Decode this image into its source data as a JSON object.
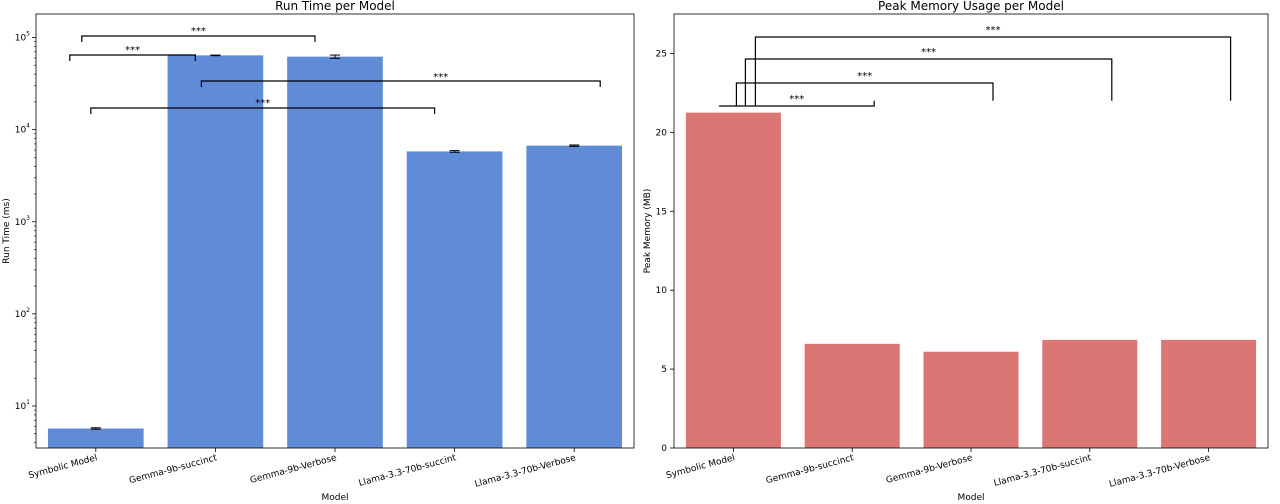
{
  "chart_data": [
    {
      "type": "bar",
      "title": "Run Time per Model",
      "xlabel": "Model",
      "ylabel": "Run Time (ms)",
      "yscale": "log",
      "ylim": [
        3.5,
        180000
      ],
      "y_ticks": [
        {
          "value": 10,
          "base": "10",
          "exp": "1"
        },
        {
          "value": 100,
          "base": "10",
          "exp": "2"
        },
        {
          "value": 1000,
          "base": "10",
          "exp": "3"
        },
        {
          "value": 10000,
          "base": "10",
          "exp": "4"
        },
        {
          "value": 100000,
          "base": "10",
          "exp": "5"
        }
      ],
      "categories": [
        "Symbolic Model",
        "Gemma-9b-succinct",
        "Gemma-9b-Verbose",
        "Llama-3.3-70b-succint",
        "Llama-3.3-70b-Verbose"
      ],
      "values": [
        5.7,
        64000,
        62000,
        5800,
        6700
      ],
      "errors": [
        0.1,
        500,
        2500,
        120,
        110
      ],
      "color": "#608bd6",
      "significance": [
        {
          "from": 0,
          "to": 2,
          "label": "***"
        },
        {
          "from": 0,
          "to": 1,
          "label": "***"
        },
        {
          "from": 1,
          "to": 4,
          "label": "***"
        },
        {
          "from": 0,
          "to": 3,
          "label": "***"
        }
      ],
      "grid": false
    },
    {
      "type": "bar",
      "title": "Peak Memory Usage per Model",
      "xlabel": "Model",
      "ylabel": "Peak Memory (MB)",
      "ylim": [
        0,
        27.5
      ],
      "y_ticks": [
        0,
        5,
        10,
        15,
        20,
        25
      ],
      "categories": [
        "Symbolic Model",
        "Gemma-9b-succinct",
        "Gemma-9b-Verbose",
        "Llama-3.3-70b-succint",
        "Llama-3.3-70b-Verbose"
      ],
      "values": [
        21.25,
        6.6,
        6.1,
        6.85,
        6.85
      ],
      "color": "#dc7674",
      "significance": [
        {
          "from": 0,
          "to": 4,
          "label": "***"
        },
        {
          "from": 0,
          "to": 3,
          "label": "***"
        },
        {
          "from": 0,
          "to": 2,
          "label": "***"
        },
        {
          "from": 0,
          "to": 1,
          "label": "***"
        }
      ],
      "grid": false
    }
  ]
}
